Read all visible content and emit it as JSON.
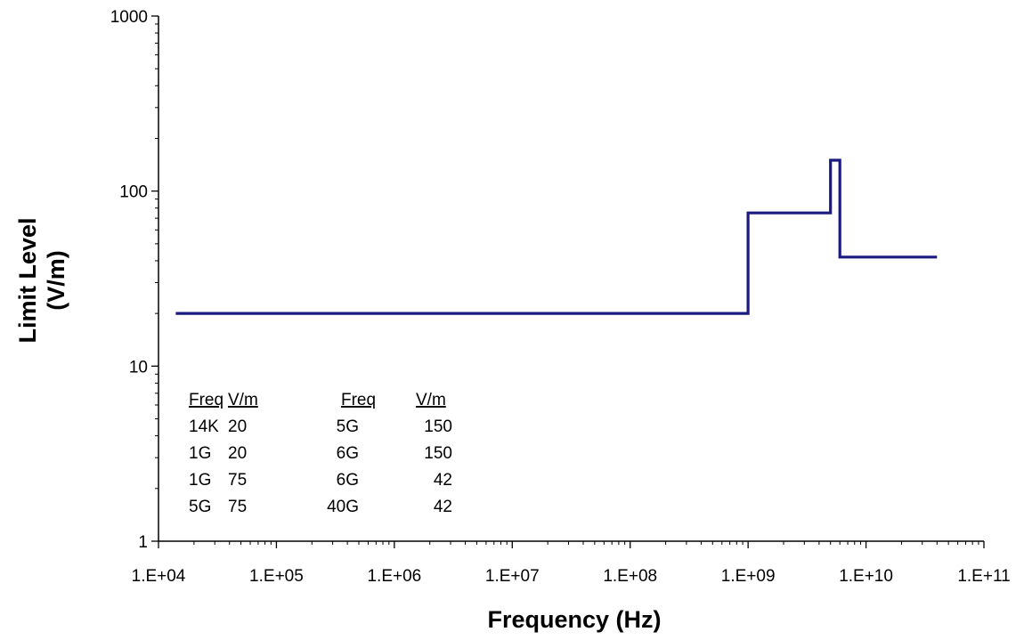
{
  "chart_data": {
    "type": "line",
    "title": "",
    "xlabel": "Frequency (Hz)",
    "ylabel_lines": [
      "Limit Level",
      "(V/m)"
    ],
    "x_scale": "log",
    "y_scale": "log",
    "xlim": [
      10000,
      100000000000
    ],
    "ylim": [
      1,
      1000
    ],
    "x_tick_labels": [
      "1.E+04",
      "1.E+05",
      "1.E+06",
      "1.E+07",
      "1.E+08",
      "1.E+09",
      "1.E+10",
      "1.E+11"
    ],
    "y_tick_labels": [
      "1",
      "10",
      "100",
      "1000"
    ],
    "grid": false,
    "legend": "none",
    "series": [
      {
        "color": "#1a1a80",
        "points": [
          [
            14000,
            20
          ],
          [
            1000000000,
            20
          ],
          [
            1000000000,
            75
          ],
          [
            5000000000,
            75
          ],
          [
            5000000000,
            150
          ],
          [
            6000000000,
            150
          ],
          [
            6000000000,
            42
          ],
          [
            40000000000,
            42
          ]
        ]
      }
    ],
    "annotation_table": {
      "headers": [
        "Freq",
        "V/m",
        "Freq",
        "V/m"
      ],
      "rows": [
        [
          "14K",
          "20",
          "5G",
          "150"
        ],
        [
          "1G",
          "20",
          "6G",
          "150"
        ],
        [
          "1G",
          "75",
          "6G",
          "42"
        ],
        [
          "5G",
          "75",
          "40G",
          "42"
        ]
      ]
    }
  }
}
